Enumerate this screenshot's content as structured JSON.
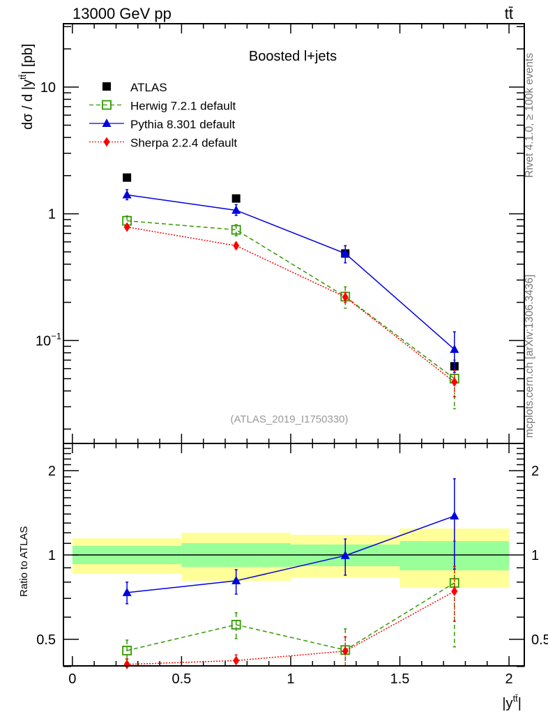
{
  "header": {
    "left": "13000 GeV pp",
    "right": "tt̄"
  },
  "side_text": {
    "rivet": "Rivet 4.1.0, ≥ 100k events",
    "mcplots": "mcplots.cern.ch [arXiv:1306.3436]"
  },
  "chart_data": [
    {
      "type": "line",
      "title": "Boosted l+jets",
      "analysis_label": "(ATLAS_2019_I1750330)",
      "ylabel": {
        "main": "dσ / d |y",
        "sup": "tt̄",
        "tail": "| [pb]"
      },
      "yscale": "log",
      "ylim": [
        0.0154,
        31.6
      ],
      "xlim": [
        -0.041,
        2.07
      ],
      "yticks": [
        {
          "value": 10,
          "base": "10",
          "exp": ""
        },
        {
          "value": 1,
          "base": "1",
          "exp": ""
        },
        {
          "value": 0.1,
          "base": "10",
          "exp": "−1"
        }
      ],
      "legend_position": "top-left",
      "x": [
        0.25,
        0.75,
        1.25,
        1.75
      ],
      "series": [
        {
          "name": "ATLAS",
          "color": "#000000",
          "marker": "filled-square",
          "line": "none",
          "values": [
            1.93,
            1.32,
            0.486,
            0.0626
          ],
          "err_lo": [
            1.93,
            1.32,
            0.486,
            0.0626
          ],
          "err_hi": [
            1.93,
            1.32,
            0.486,
            0.0626
          ]
        },
        {
          "name": "Herwig 7.2.1 default",
          "color": "#339900",
          "marker": "open-square",
          "line": "dashed",
          "values": [
            0.88,
            0.747,
            0.222,
            0.05
          ],
          "err_lo": [
            0.82,
            0.67,
            0.18,
            0.029
          ],
          "err_hi": [
            0.96,
            0.82,
            0.265,
            0.07
          ]
        },
        {
          "name": "Pythia 8.301 default",
          "color": "#0000dd",
          "marker": "triangle",
          "line": "solid",
          "values": [
            1.41,
            1.065,
            0.486,
            0.085
          ],
          "err_lo": [
            1.29,
            0.97,
            0.41,
            0.056
          ],
          "err_hi": [
            1.55,
            1.18,
            0.56,
            0.117
          ]
        },
        {
          "name": "Sherpa 2.2.4 default",
          "color": "#ff0000",
          "marker": "diamond",
          "line": "dotted",
          "values": [
            0.786,
            0.56,
            0.22,
            0.047
          ],
          "err_lo": [
            0.75,
            0.53,
            0.2,
            0.036
          ],
          "err_hi": [
            0.82,
            0.59,
            0.24,
            0.058
          ]
        }
      ]
    },
    {
      "type": "line",
      "ylabel": "Ratio to ATLAS",
      "xlabel": {
        "main": "|y",
        "sup": "tt̄",
        "tail": "|"
      },
      "yscale": "log",
      "ylim": [
        0.402,
        2.5
      ],
      "xlim": [
        -0.041,
        2.07
      ],
      "yticks": [
        "0.5",
        "1",
        "2"
      ],
      "ytick_values": [
        0.5,
        1,
        2
      ],
      "xticks": [
        "0",
        "0.5",
        "1",
        "1.5",
        "2"
      ],
      "xtick_values": [
        0,
        0.5,
        1,
        1.5,
        2
      ],
      "bins": [
        [
          0,
          0.5
        ],
        [
          0.5,
          1
        ],
        [
          1,
          1.5
        ],
        [
          1.5,
          2
        ]
      ],
      "band_outer": {
        "color": "#ffff99",
        "lo": [
          0.857,
          0.809,
          0.828,
          0.764
        ],
        "hi": [
          1.147,
          1.2,
          1.18,
          1.243
        ]
      },
      "band_inner": {
        "color": "#99ff99",
        "lo": [
          0.928,
          0.907,
          0.912,
          0.882
        ],
        "hi": [
          1.077,
          1.102,
          1.09,
          1.121
        ]
      },
      "x": [
        0.25,
        0.75,
        1.25,
        1.75
      ],
      "series": [
        {
          "name": "Herwig 7.2.1 default",
          "color": "#339900",
          "marker": "open-square",
          "line": "dashed",
          "values": [
            0.456,
            0.564,
            0.458,
            0.795
          ],
          "err_lo": [
            0.426,
            0.503,
            0.4,
            0.47
          ],
          "err_hi": [
            0.497,
            0.622,
            0.545,
            1.12
          ]
        },
        {
          "name": "Pythia 8.301 default",
          "color": "#0000dd",
          "marker": "triangle",
          "line": "solid",
          "values": [
            0.734,
            0.809,
            0.995,
            1.378
          ],
          "err_lo": [
            0.67,
            0.725,
            0.847,
            0.89
          ],
          "err_hi": [
            0.8,
            0.886,
            1.14,
            1.87
          ]
        },
        {
          "name": "Sherpa 2.2.4 default",
          "color": "#ff0000",
          "marker": "diamond",
          "line": "dotted",
          "values": [
            0.407,
            0.42,
            0.454,
            0.742
          ],
          "err_lo": [
            0.39,
            0.4,
            0.4,
            0.58
          ],
          "err_hi": [
            0.425,
            0.44,
            0.51,
            0.91
          ]
        }
      ]
    }
  ]
}
